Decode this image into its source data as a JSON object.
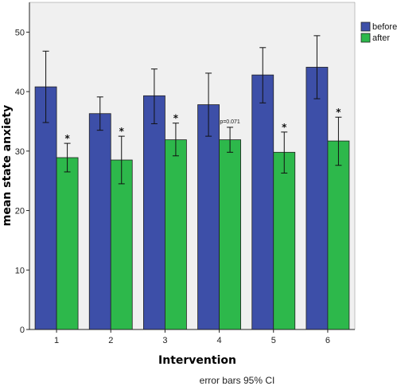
{
  "chart_data": {
    "type": "bar",
    "xlabel": "Intervention",
    "ylabel": "mean state anxiety",
    "footnote": "error bars 95% CI",
    "categories": [
      "1",
      "2",
      "3",
      "4",
      "5",
      "6"
    ],
    "ylim": [
      0,
      55
    ],
    "yticks": [
      0,
      10,
      20,
      30,
      40,
      50
    ],
    "grid": false,
    "legend_position": "top-right",
    "series": [
      {
        "name": "before",
        "color": "#3d4fa8",
        "values": [
          40.8,
          36.3,
          39.3,
          37.8,
          42.8,
          44.1
        ],
        "ci_low": [
          34.8,
          33.5,
          34.6,
          32.5,
          38.1,
          38.8
        ],
        "ci_high": [
          46.8,
          39.1,
          43.8,
          43.1,
          47.4,
          49.4
        ]
      },
      {
        "name": "after",
        "color": "#2db84b",
        "values": [
          28.9,
          28.5,
          31.9,
          31.9,
          29.8,
          31.7
        ],
        "ci_low": [
          26.5,
          24.5,
          29.2,
          29.8,
          26.3,
          27.6
        ],
        "ci_high": [
          31.3,
          32.5,
          34.7,
          34.0,
          33.2,
          35.7
        ]
      }
    ],
    "annotations": [
      "*",
      "*",
      "*",
      "p=0.071",
      "*",
      "*"
    ]
  }
}
